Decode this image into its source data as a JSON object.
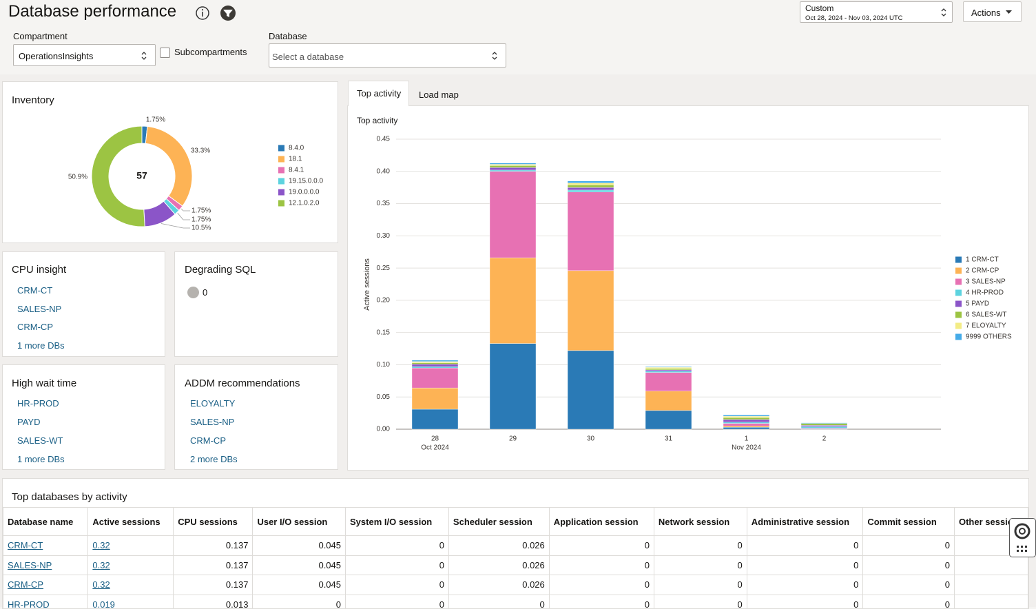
{
  "header": {
    "title": "Database performance",
    "date_range_label": "Custom",
    "date_range_value": "Oct 28, 2024 - Nov 03, 2024 UTC",
    "actions": "Actions"
  },
  "filters": {
    "compartment_label": "Compartment",
    "compartment_value": "OperationsInsights",
    "subcompartments": "Subcompartments",
    "database_label": "Database",
    "database_placeholder": "Select a database"
  },
  "cards": {
    "cpu_insight": {
      "title": "CPU insight",
      "items": [
        "CRM-CT",
        "SALES-NP",
        "CRM-CP"
      ],
      "more": "1 more DBs"
    },
    "degrading_sql": {
      "title": "Degrading SQL",
      "count": 0
    },
    "high_wait_time": {
      "title": "High wait time",
      "items": [
        "HR-PROD",
        "PAYD",
        "SALES-WT"
      ],
      "more": "1 more DBs"
    },
    "addm": {
      "title": "ADDM recommendations",
      "items": [
        "ELOYALTY",
        "SALES-NP",
        "CRM-CP"
      ],
      "more": "2 more DBs"
    }
  },
  "tabs": [
    "Top activity",
    "Load map"
  ],
  "chart_data": [
    {
      "type": "donut",
      "title": "Inventory",
      "center_value": 57,
      "categories": [
        "8.4.0",
        "18.1",
        "8.4.1",
        "19.15.0.0.0",
        "19.0.0.0.0",
        "12.1.0.2.0"
      ],
      "values": [
        1.75,
        33.3,
        1.75,
        1.75,
        10.5,
        50.9
      ],
      "value_labels": [
        "1.75%",
        "33.3%",
        "1.75%",
        "1.75%",
        "10.5%",
        "50.9%"
      ],
      "colors": [
        "#2a7ab6",
        "#fdb355",
        "#e771b3",
        "#5dd3df",
        "#8b55c8",
        "#9cc443"
      ]
    },
    {
      "type": "bar",
      "stacked": true,
      "title": "Top activity",
      "ylabel": "Active sessions",
      "categories": [
        "28",
        "29",
        "30",
        "31",
        "1",
        "2",
        null
      ],
      "category_sublabels": [
        "Oct 2024",
        null,
        null,
        null,
        "Nov 2024",
        null,
        null
      ],
      "ylim": [
        0,
        0.45
      ],
      "yticks": [
        {
          "value": 0,
          "label": "0.00"
        },
        {
          "value": 0.05,
          "label": "0.05"
        },
        {
          "value": 0.1,
          "label": "0.10"
        },
        {
          "value": 0.15,
          "label": "0.15"
        },
        {
          "value": 0.2,
          "label": "0.20"
        },
        {
          "value": 0.25,
          "label": "0.25"
        },
        {
          "value": 0.3,
          "label": "0.30"
        },
        {
          "value": 0.35,
          "label": "0.35"
        },
        {
          "value": 0.4,
          "label": "0.40"
        },
        {
          "value": 0.45,
          "label": "0.45"
        }
      ],
      "grid": true,
      "series": [
        {
          "name": "1 CRM-CT",
          "color": "#2a7ab6",
          "values": [
            0.031,
            0.133,
            0.122,
            0.029,
            0.003,
            0.001,
            null
          ]
        },
        {
          "name": "2 CRM-CP",
          "color": "#fdb355",
          "values": [
            0.033,
            0.133,
            0.124,
            0.03,
            0.002,
            0,
            null
          ]
        },
        {
          "name": "3 SALES-NP",
          "color": "#e771b3",
          "values": [
            0.031,
            0.134,
            0.122,
            0.029,
            0.004,
            0.001,
            null
          ]
        },
        {
          "name": "4 HR-PROD",
          "color": "#5dd3df",
          "values": [
            0.002,
            0.002,
            0.003,
            0.002,
            0.002,
            0.002,
            null
          ]
        },
        {
          "name": "5 PAYD",
          "color": "#8b55c8",
          "values": [
            0.004,
            0.004,
            0.004,
            0.002,
            0.004,
            0.002,
            null
          ]
        },
        {
          "name": "6 SALES-WT",
          "color": "#9cc443",
          "values": [
            0.002,
            0.003,
            0.004,
            0.002,
            0.003,
            0.003,
            null
          ]
        },
        {
          "name": "7 ELOYALTY",
          "color": "#f3ec86",
          "values": [
            0.002,
            0.002,
            0.003,
            0.002,
            0.002,
            0,
            null
          ]
        },
        {
          "name": "9999 OTHERS",
          "color": "#45abe8",
          "values": [
            0.002,
            0.002,
            0.003,
            0.001,
            0.002,
            0.001,
            null
          ]
        }
      ]
    }
  ],
  "table": {
    "title": "Top databases by activity",
    "columns": [
      "Database name",
      "Active sessions",
      "CPU sessions",
      "User I/O session",
      "System I/O session",
      "Scheduler session",
      "Application session",
      "Network session",
      "Administrative session",
      "Commit session",
      "Other sessions"
    ],
    "rows": [
      [
        "CRM-CT",
        0.32,
        0.137,
        0.045,
        0,
        0.026,
        0,
        0,
        0,
        0
      ],
      [
        "SALES-NP",
        0.32,
        0.137,
        0.045,
        0,
        0.026,
        0,
        0,
        0,
        0
      ],
      [
        "CRM-CP",
        0.32,
        0.137,
        0.045,
        0,
        0.026,
        0,
        0,
        0,
        0
      ],
      [
        "HR-PROD",
        0.019,
        0.013,
        0,
        0,
        0,
        0,
        0,
        0,
        0
      ]
    ]
  }
}
